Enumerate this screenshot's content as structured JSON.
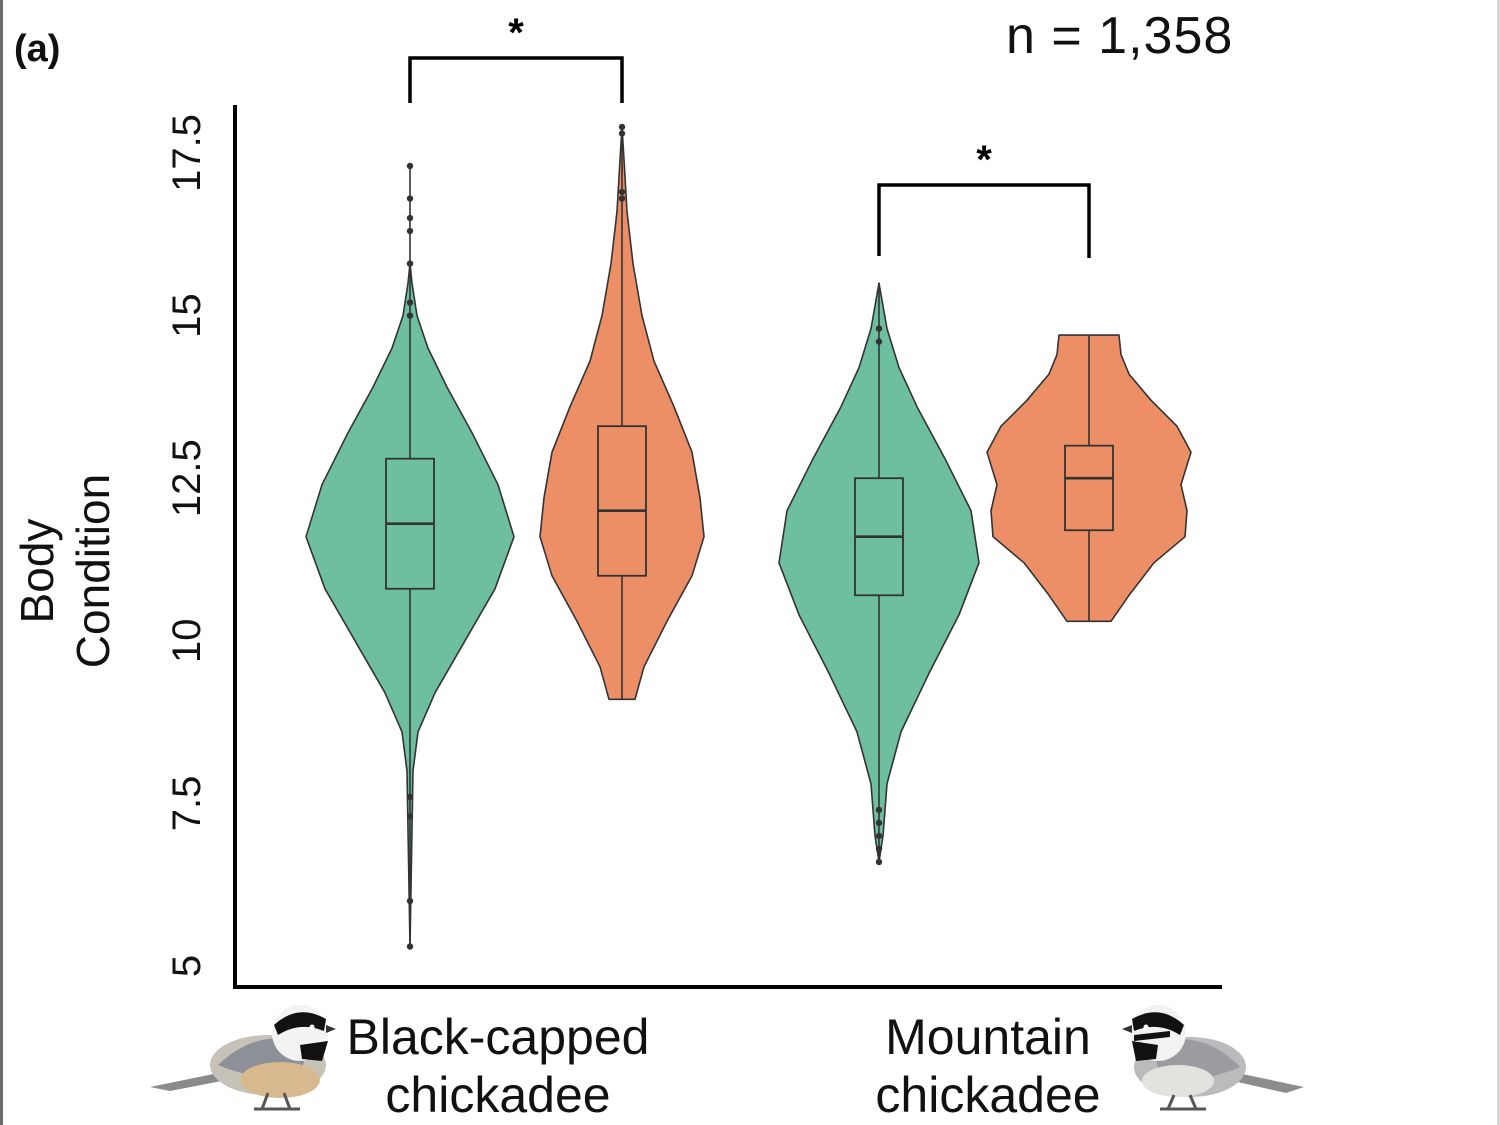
{
  "panel_label": "(a)",
  "sample_size": "n = 1,358",
  "chart_data": {
    "type": "violin",
    "ylabel_line1": "Body",
    "ylabel_line2": "Condition",
    "xlabel": "",
    "ylim": [
      5,
      18.3
    ],
    "yticks": [
      5,
      7.5,
      10,
      12.5,
      15,
      17.5
    ],
    "ytick_labels": [
      "5",
      "7.5",
      "10",
      "12.5",
      "15",
      "17.5"
    ],
    "grid": false,
    "legend": "none",
    "colors": {
      "teal": "#6dbf9f",
      "orange": "#ec8f66",
      "outline": "#333333"
    },
    "groups": [
      {
        "label_line1": "Black-capped",
        "label_line2": "chickadee",
        "significance": "*",
        "violins": [
          {
            "color": "teal",
            "box": {
              "min": 5.3,
              "q1": 10.8,
              "median": 11.8,
              "q3": 12.8,
              "max": 17.3
            },
            "outliers": [
              5.3,
              6.0,
              7.3,
              7.6,
              15.0,
              15.2,
              15.8,
              16.3,
              16.5,
              16.8,
              17.3
            ],
            "density_halfwidth": [
              [
                5.3,
                0
              ],
              [
                8.0,
                3
              ],
              [
                8.6,
                8
              ],
              [
                9.2,
                25
              ],
              [
                10.0,
                55
              ],
              [
                10.8,
                85
              ],
              [
                11.6,
                104
              ],
              [
                12.4,
                88
              ],
              [
                13.2,
                62
              ],
              [
                13.9,
                37
              ],
              [
                14.5,
                18
              ],
              [
                15.0,
                7
              ],
              [
                15.5,
                2
              ],
              [
                15.8,
                0
              ]
            ]
          },
          {
            "color": "orange",
            "box": {
              "min": 9.1,
              "q1": 11.0,
              "median": 12.0,
              "q3": 13.3,
              "max": 17.9
            },
            "outliers": [
              16.8,
              16.9,
              17.8,
              17.9
            ],
            "density_halfwidth": [
              [
                9.1,
                13
              ],
              [
                9.6,
                22
              ],
              [
                10.3,
                45
              ],
              [
                11.0,
                70
              ],
              [
                11.6,
                82
              ],
              [
                12.2,
                78
              ],
              [
                12.9,
                70
              ],
              [
                13.6,
                52
              ],
              [
                14.3,
                32
              ],
              [
                15.0,
                20
              ],
              [
                15.8,
                11
              ],
              [
                16.6,
                5
              ],
              [
                17.4,
                2
              ],
              [
                17.9,
                0
              ]
            ]
          }
        ]
      },
      {
        "label_line1": "Mountain",
        "label_line2": "chickadee",
        "significance": "*",
        "violins": [
          {
            "color": "teal",
            "box": {
              "min": 6.6,
              "q1": 10.7,
              "median": 11.6,
              "q3": 12.5,
              "max": 15.5
            },
            "outliers": [
              6.6,
              6.8,
              7.0,
              7.2,
              7.4,
              14.6,
              14.8
            ],
            "density_halfwidth": [
              [
                6.6,
                0
              ],
              [
                7.0,
                4
              ],
              [
                7.8,
                8
              ],
              [
                8.6,
                22
              ],
              [
                9.5,
                50
              ],
              [
                10.4,
                80
              ],
              [
                11.2,
                100
              ],
              [
                12.0,
                92
              ],
              [
                12.8,
                66
              ],
              [
                13.6,
                38
              ],
              [
                14.2,
                20
              ],
              [
                14.8,
                8
              ],
              [
                15.5,
                0
              ]
            ]
          },
          {
            "color": "orange",
            "box": {
              "min": 10.3,
              "q1": 11.7,
              "median": 12.5,
              "q3": 13.0,
              "max": 14.7
            },
            "outliers": [],
            "density_halfwidth": [
              [
                10.3,
                22
              ],
              [
                10.7,
                40
              ],
              [
                11.2,
                65
              ],
              [
                11.6,
                96
              ],
              [
                12.0,
                98
              ],
              [
                12.4,
                92
              ],
              [
                12.9,
                102
              ],
              [
                13.3,
                88
              ],
              [
                13.7,
                62
              ],
              [
                14.1,
                40
              ],
              [
                14.4,
                32
              ],
              [
                14.7,
                30
              ]
            ]
          }
        ]
      }
    ]
  }
}
